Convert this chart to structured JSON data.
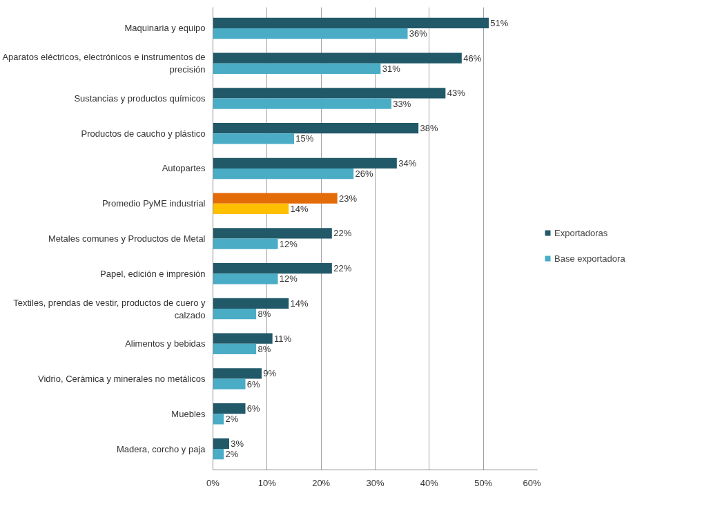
{
  "chart_data": {
    "type": "bar",
    "orientation": "horizontal",
    "categories": [
      "Maquinaria y equipo",
      "Aparatos eléctricos, electrónicos e instrumentos de precisión",
      "Sustancias y productos químicos",
      "Productos de caucho y plástico",
      "Autopartes",
      "Promedio PyME industrial",
      "Metales comunes y Productos de Metal",
      "Papel, edición e impresión",
      "Textiles, prendas de vestir, productos de cuero y calzado",
      "Alimentos y bebidas",
      "Vidrio, Cerámica y minerales no metálicos",
      "Muebles",
      "Madera, corcho y paja"
    ],
    "series": [
      {
        "name": "Exportadoras",
        "color": "#215968",
        "colors": [
          "#215968",
          "#215968",
          "#215968",
          "#215968",
          "#215968",
          "#e36c09",
          "#215968",
          "#215968",
          "#215968",
          "#215968",
          "#215968",
          "#215968",
          "#215968"
        ],
        "values": [
          51,
          46,
          43,
          38,
          34,
          23,
          22,
          22,
          14,
          11,
          9,
          6,
          3
        ],
        "value_labels": [
          "51%",
          "46%",
          "43%",
          "38%",
          "34%",
          "23%",
          "22%",
          "22%",
          "14%",
          "11%",
          "9%",
          "6%",
          "3%"
        ]
      },
      {
        "name": "Base exportadora",
        "color": "#4bacc6",
        "colors": [
          "#4bacc6",
          "#4bacc6",
          "#4bacc6",
          "#4bacc6",
          "#4bacc6",
          "#ffc000",
          "#4bacc6",
          "#4bacc6",
          "#4bacc6",
          "#4bacc6",
          "#4bacc6",
          "#4bacc6",
          "#4bacc6"
        ],
        "values": [
          36,
          31,
          33,
          15,
          26,
          14,
          12,
          12,
          8,
          8,
          6,
          2,
          2
        ],
        "value_labels": [
          "36%",
          "31%",
          "33%",
          "15%",
          "26%",
          "14%",
          "12%",
          "12%",
          "8%",
          "8%",
          "6%",
          "2%",
          "2%"
        ]
      }
    ],
    "xlim": [
      0,
      60
    ],
    "xticks": [
      {
        "value": 0,
        "label": "0%"
      },
      {
        "value": 10,
        "label": "10%"
      },
      {
        "value": 20,
        "label": "20%"
      },
      {
        "value": 30,
        "label": "30%"
      },
      {
        "value": 40,
        "label": "40%"
      },
      {
        "value": 50,
        "label": "50%"
      },
      {
        "value": 60,
        "label": "60%"
      }
    ],
    "grid": "x",
    "legend": "right"
  }
}
